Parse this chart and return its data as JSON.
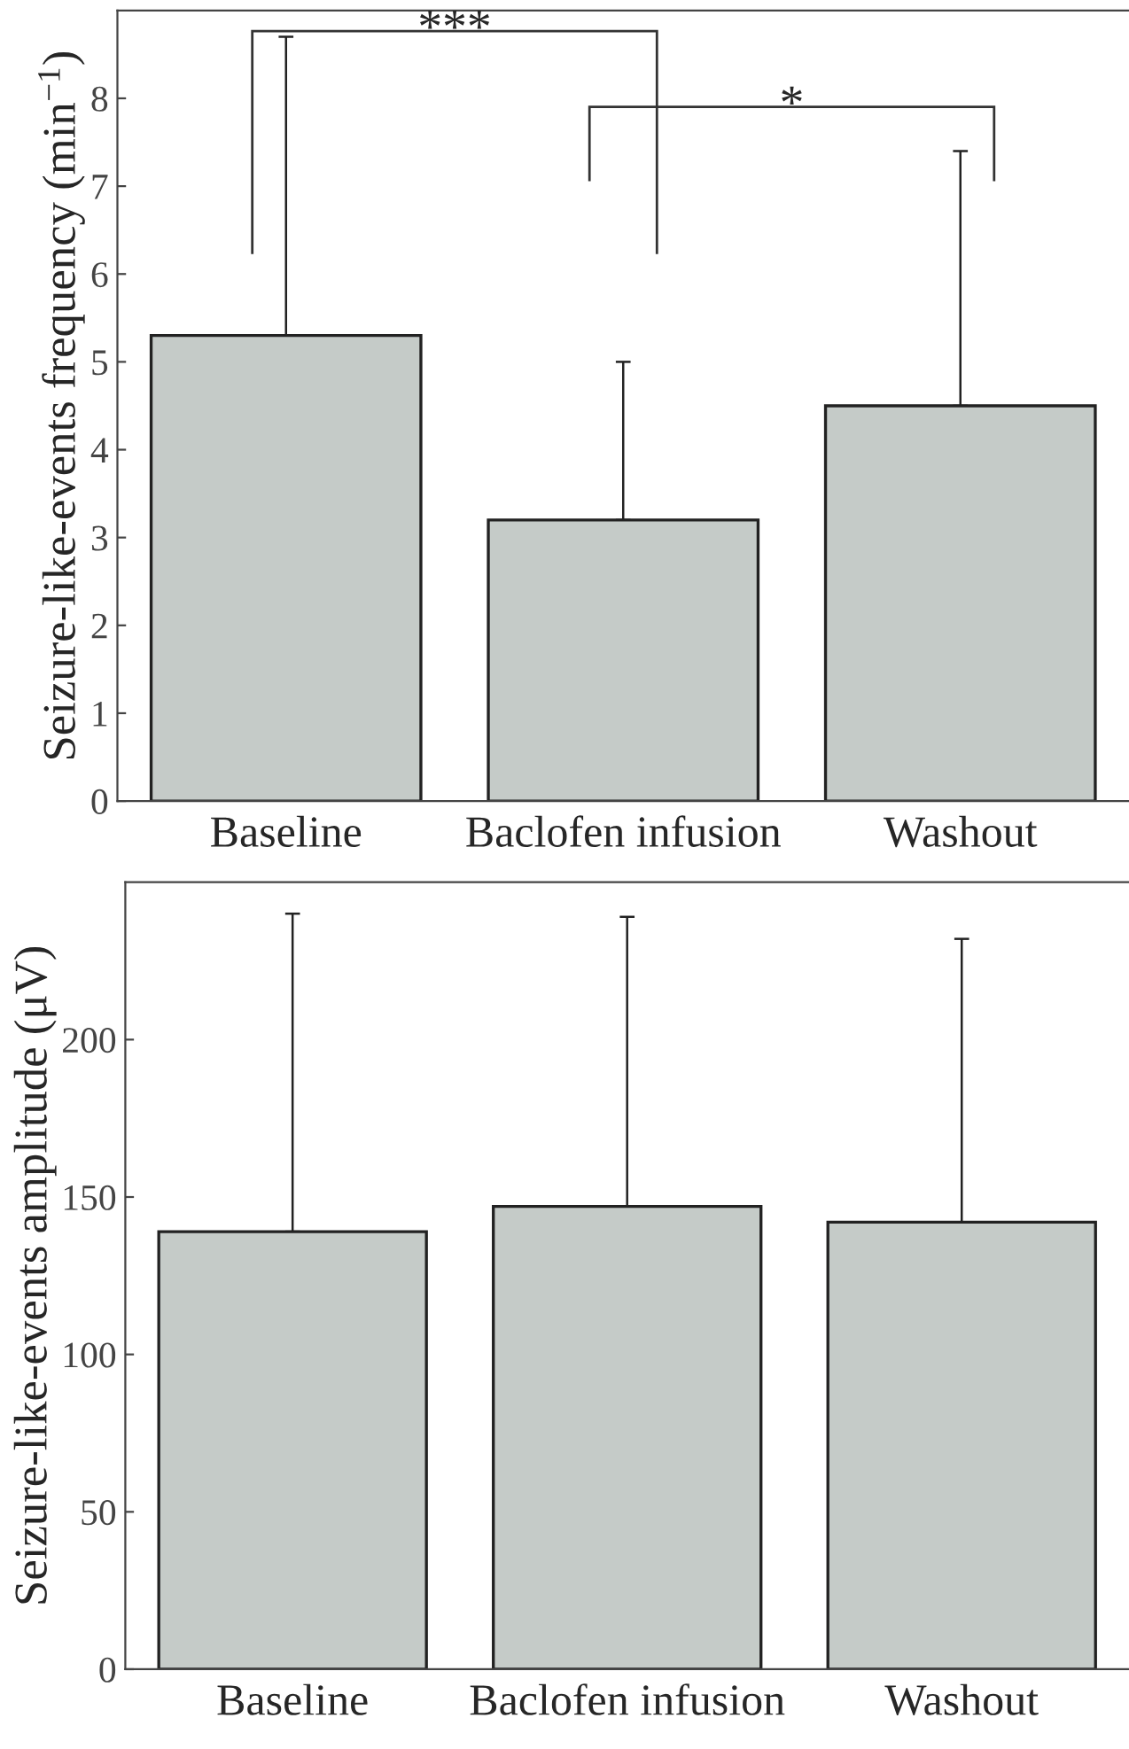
{
  "chart_data": [
    {
      "type": "bar",
      "ylabel": "Seizure-like-events frequency (min$^{−1}$)",
      "categories": [
        "Baseline",
        "Baclofen infusion",
        "Washout"
      ],
      "color": "#c5cbc8",
      "values": [
        5.3,
        3.2,
        4.5
      ],
      "errors": [
        [
          5.3,
          8.7
        ],
        [
          3.2,
          5.0
        ],
        [
          4.5,
          7.4
        ]
      ],
      "ylim": [
        0,
        9
      ],
      "yticks": [
        0,
        1,
        2,
        3,
        4,
        5,
        6,
        7,
        8
      ],
      "grid": false,
      "legend": false,
      "annotations": [
        "***",
        "*"
      ]
    },
    {
      "type": "bar",
      "ylabel": "Seizure-like-events amplitude (μV)",
      "categories": [
        "Baseline",
        "Baclofen infusion",
        "Washout"
      ],
      "color": "#c5cbc8",
      "values": [
        139,
        147,
        142
      ],
      "errors": [
        [
          139,
          240
        ],
        [
          147,
          239
        ],
        [
          142,
          232
        ]
      ],
      "ylim": [
        0,
        250
      ],
      "yticks": [
        0,
        50,
        100,
        150,
        200
      ],
      "grid": false,
      "legend": false
    }
  ]
}
